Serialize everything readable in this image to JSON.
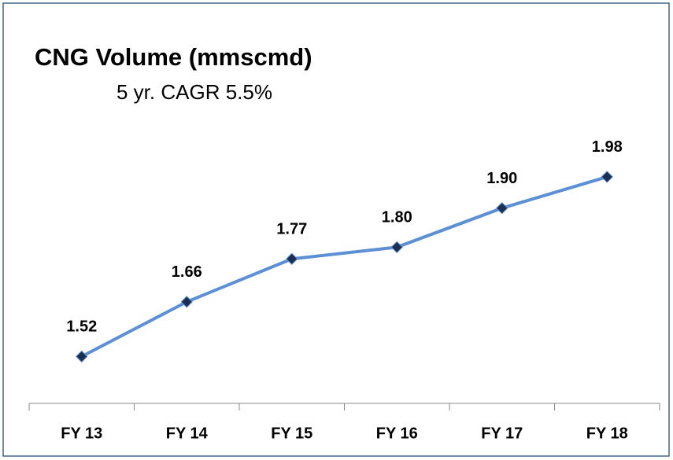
{
  "chart_data": {
    "type": "line",
    "title": "CNG Volume (mmscmd)",
    "subtitle": "5 yr. CAGR  5.5%",
    "categories": [
      "FY 13",
      "FY 14",
      "FY 15",
      "FY 16",
      "FY 17",
      "FY 18"
    ],
    "values": [
      1.52,
      1.66,
      1.77,
      1.8,
      1.9,
      1.98
    ],
    "value_labels": [
      "1.52",
      "1.66",
      "1.77",
      "1.80",
      "1.90",
      "1.98"
    ],
    "color": "#5b8fd6",
    "marker_color": "#1a2f52",
    "ylim": [
      1.4,
      2.0
    ]
  }
}
